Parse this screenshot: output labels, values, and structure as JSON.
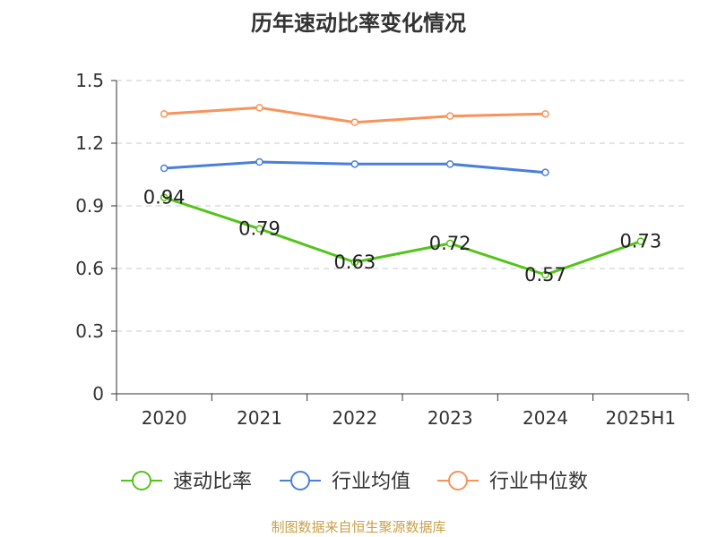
{
  "colors": {
    "series_speed": "#52c41a",
    "series_avg": "#4a7fd9",
    "series_median": "#f8935a",
    "grid": "#c8c8c8",
    "axis": "#333333",
    "source": "#c8a04a"
  },
  "source_note": "制图数据来自恒生聚源数据库",
  "chart_data": {
    "type": "line",
    "title": "历年速动比率变化情况",
    "xlabel": "",
    "ylabel": "",
    "categories": [
      "2020",
      "2021",
      "2022",
      "2023",
      "2024",
      "2025H1"
    ],
    "ylim": [
      0,
      1.5
    ],
    "yticks": [
      "0",
      "0.3",
      "0.6",
      "0.9",
      "1.2",
      "1.5"
    ],
    "grid": true,
    "legend_position": "bottom",
    "series": [
      {
        "name": "速动比率",
        "values": [
          0.94,
          0.79,
          0.63,
          0.72,
          0.57,
          0.73
        ],
        "labels": [
          "0.94",
          "0.79",
          "0.63",
          "0.72",
          "0.57",
          "0.73"
        ]
      },
      {
        "name": "行业均值",
        "values": [
          1.08,
          1.11,
          1.1,
          1.1,
          1.06,
          null
        ]
      },
      {
        "name": "行业中位数",
        "values": [
          1.34,
          1.37,
          1.3,
          1.33,
          1.34,
          null
        ]
      }
    ]
  }
}
